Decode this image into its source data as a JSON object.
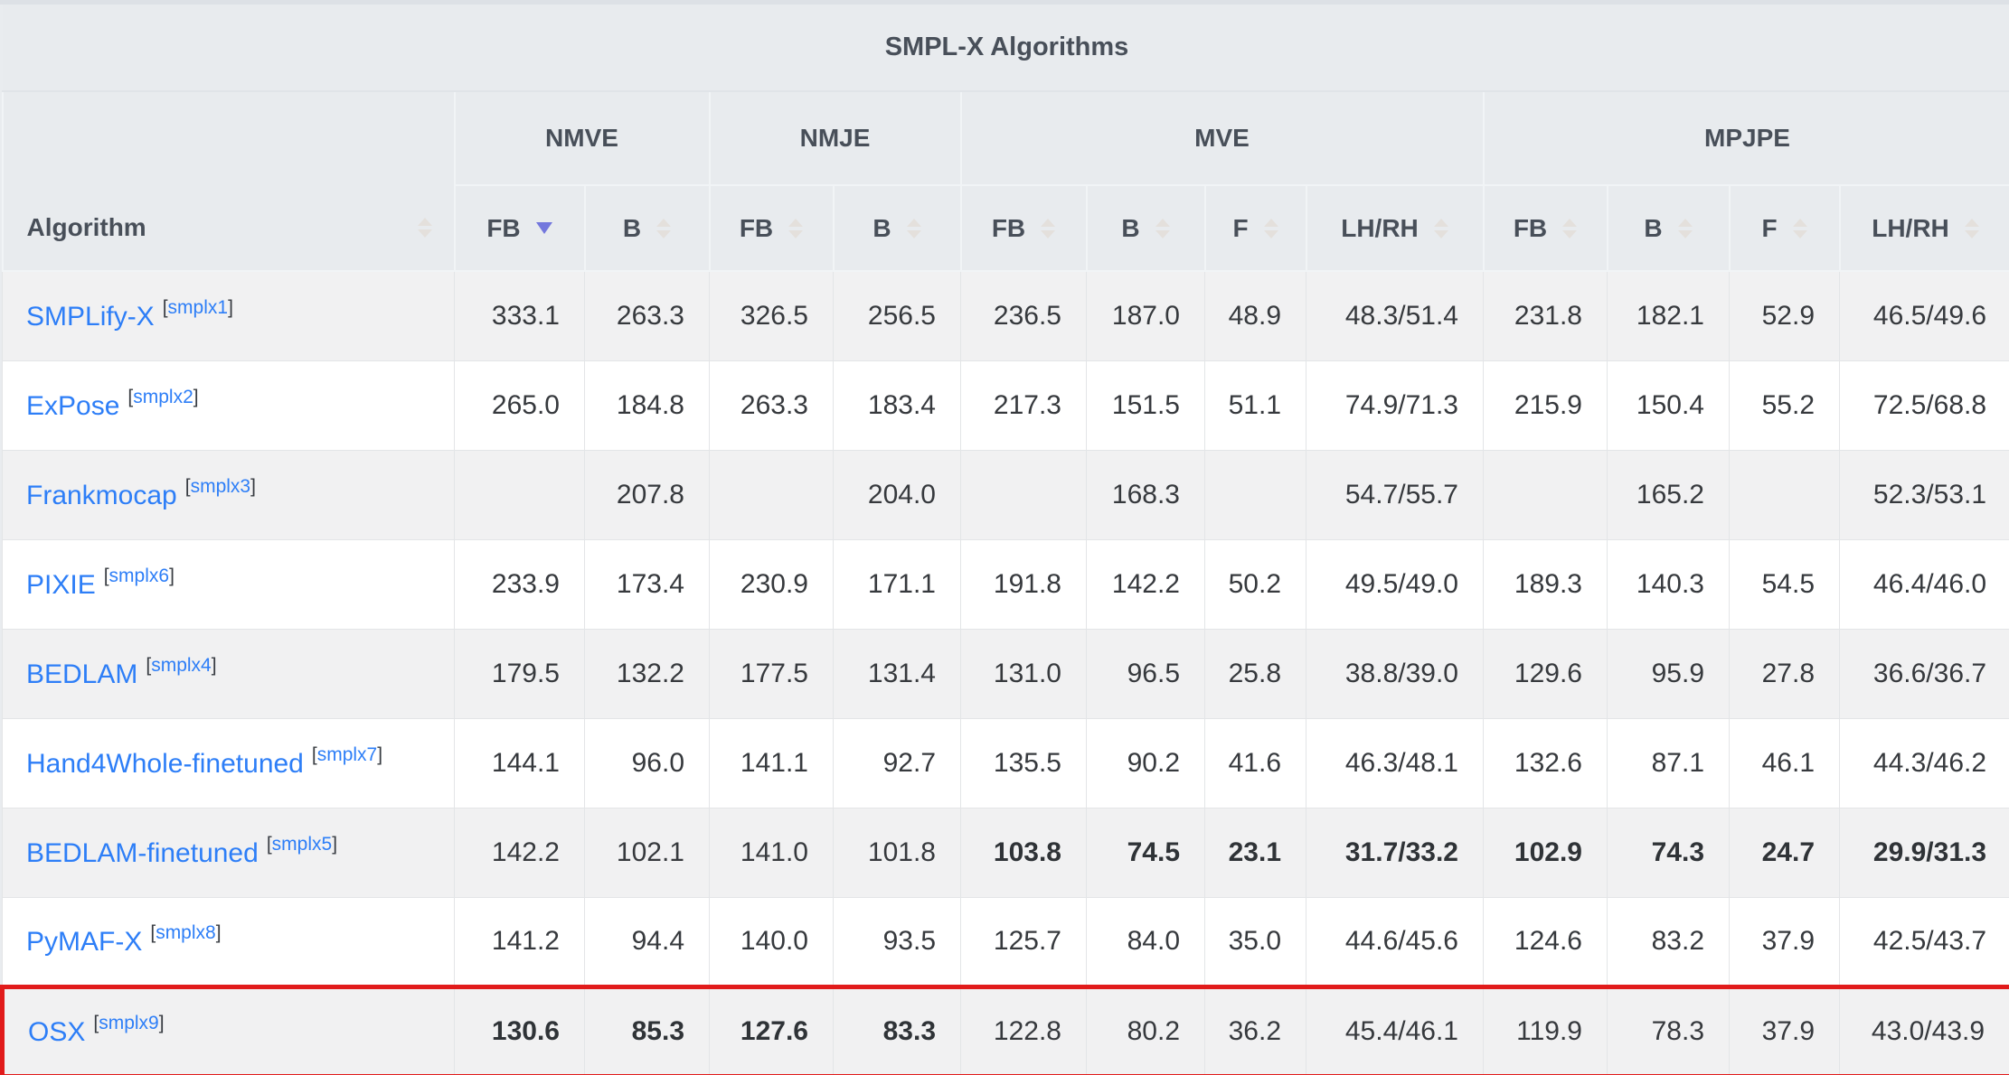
{
  "title": "SMPL-X Algorithms",
  "header": {
    "algorithm": "Algorithm",
    "groups": [
      {
        "label": "NMVE",
        "span": 2
      },
      {
        "label": "NMJE",
        "span": 2
      },
      {
        "label": "MVE",
        "span": 4
      },
      {
        "label": "MPJPE",
        "span": 4
      }
    ],
    "columns": [
      {
        "label": "FB",
        "sort": "desc"
      },
      {
        "label": "B",
        "sort": "none"
      },
      {
        "label": "FB",
        "sort": "none"
      },
      {
        "label": "B",
        "sort": "none"
      },
      {
        "label": "FB",
        "sort": "none"
      },
      {
        "label": "B",
        "sort": "none"
      },
      {
        "label": "F",
        "sort": "none"
      },
      {
        "label": "LH/RH",
        "sort": "none"
      },
      {
        "label": "FB",
        "sort": "none"
      },
      {
        "label": "B",
        "sort": "none"
      },
      {
        "label": "F",
        "sort": "none"
      },
      {
        "label": "LH/RH",
        "sort": "none"
      }
    ]
  },
  "colors": {
    "link_blue": "#2d7ef7",
    "highlight_border_red": "#e11b1b",
    "sort_active_purple": "#7377dd",
    "header_text": "#484f59",
    "row_stripe_gray": "#f1f1f2"
  },
  "rows": [
    {
      "algorithm": "SMPLify-X",
      "citation": "smplx1",
      "highlighted": false,
      "bold": [],
      "values": [
        "333.1",
        "263.3",
        "326.5",
        "256.5",
        "236.5",
        "187.0",
        "48.9",
        "48.3/51.4",
        "231.8",
        "182.1",
        "52.9",
        "46.5/49.6"
      ]
    },
    {
      "algorithm": "ExPose",
      "citation": "smplx2",
      "highlighted": false,
      "bold": [],
      "values": [
        "265.0",
        "184.8",
        "263.3",
        "183.4",
        "217.3",
        "151.5",
        "51.1",
        "74.9/71.3",
        "215.9",
        "150.4",
        "55.2",
        "72.5/68.8"
      ]
    },
    {
      "algorithm": "Frankmocap",
      "citation": "smplx3",
      "highlighted": false,
      "bold": [],
      "values": [
        "",
        "207.8",
        "",
        "204.0",
        "",
        "168.3",
        "",
        "54.7/55.7",
        "",
        "165.2",
        "",
        "52.3/53.1"
      ]
    },
    {
      "algorithm": "PIXIE",
      "citation": "smplx6",
      "highlighted": false,
      "bold": [],
      "values": [
        "233.9",
        "173.4",
        "230.9",
        "171.1",
        "191.8",
        "142.2",
        "50.2",
        "49.5/49.0",
        "189.3",
        "140.3",
        "54.5",
        "46.4/46.0"
      ]
    },
    {
      "algorithm": "BEDLAM",
      "citation": "smplx4",
      "highlighted": false,
      "bold": [],
      "values": [
        "179.5",
        "132.2",
        "177.5",
        "131.4",
        "131.0",
        "96.5",
        "25.8",
        "38.8/39.0",
        "129.6",
        "95.9",
        "27.8",
        "36.6/36.7"
      ]
    },
    {
      "algorithm": "Hand4Whole-finetuned",
      "citation": "smplx7",
      "highlighted": false,
      "bold": [],
      "values": [
        "144.1",
        "96.0",
        "141.1",
        "92.7",
        "135.5",
        "90.2",
        "41.6",
        "46.3/48.1",
        "132.6",
        "87.1",
        "46.1",
        "44.3/46.2"
      ]
    },
    {
      "algorithm": "BEDLAM-finetuned",
      "citation": "smplx5",
      "highlighted": false,
      "bold": [
        4,
        5,
        6,
        7,
        8,
        9,
        10,
        11
      ],
      "values": [
        "142.2",
        "102.1",
        "141.0",
        "101.8",
        "103.8",
        "74.5",
        "23.1",
        "31.7/33.2",
        "102.9",
        "74.3",
        "24.7",
        "29.9/31.3"
      ]
    },
    {
      "algorithm": "PyMAF-X",
      "citation": "smplx8",
      "highlighted": false,
      "bold": [],
      "values": [
        "141.2",
        "94.4",
        "140.0",
        "93.5",
        "125.7",
        "84.0",
        "35.0",
        "44.6/45.6",
        "124.6",
        "83.2",
        "37.9",
        "42.5/43.7"
      ]
    },
    {
      "algorithm": "OSX",
      "citation": "smplx9",
      "highlighted": true,
      "bold": [
        0,
        1,
        2,
        3
      ],
      "values": [
        "130.6",
        "85.3",
        "127.6",
        "83.3",
        "122.8",
        "80.2",
        "36.2",
        "45.4/46.1",
        "119.9",
        "78.3",
        "37.9",
        "43.0/43.9"
      ]
    }
  ]
}
